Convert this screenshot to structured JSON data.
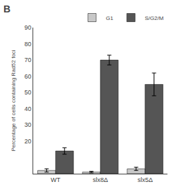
{
  "chart_data": {
    "type": "bar",
    "title": "B",
    "categories": [
      "WT",
      "slx8Δ",
      "slx5Δ"
    ],
    "series": [
      {
        "name": "G1",
        "color": "#c8c8c8",
        "values": [
          2,
          1,
          3
        ],
        "errors": [
          1,
          0.5,
          1
        ]
      },
      {
        "name": "S/G2/M",
        "color": "#555555",
        "values": [
          14,
          70,
          55
        ],
        "errors": [
          2,
          3,
          7
        ]
      }
    ],
    "y_label": "Percentage of cells containing Rad52 foci",
    "ylim": [
      0,
      90
    ],
    "yticks": [
      20,
      30,
      40,
      50,
      60,
      70,
      80,
      90
    ],
    "grid": false,
    "legend": "upper right"
  }
}
